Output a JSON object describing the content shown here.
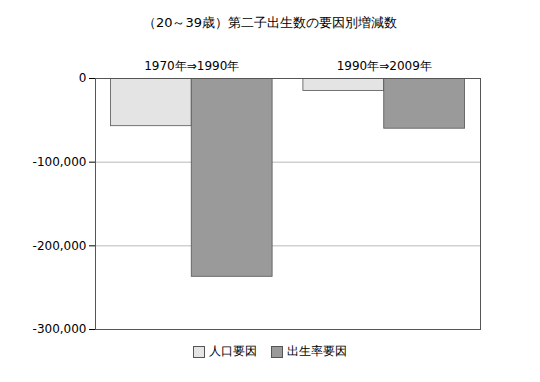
{
  "chart_data": {
    "type": "bar",
    "title": "（20～39歳）第二子出生数の要因別増減数",
    "categories": [
      "1970年⇒1990年",
      "1990年⇒2009年"
    ],
    "series": [
      {
        "name": "人口要因",
        "color": "#e4e4e4",
        "values": [
          -57000,
          -15000
        ]
      },
      {
        "name": "出生率要因",
        "color": "#9a9a9a",
        "values": [
          -237000,
          -60000
        ]
      }
    ],
    "ylim": [
      -300000,
      0
    ],
    "yticks": [
      {
        "value": -300000,
        "label": "-300,000"
      },
      {
        "value": -200000,
        "label": "-200,000"
      },
      {
        "value": -100000,
        "label": "-100,000"
      },
      0
    ],
    "grid": true,
    "legend": "bottom"
  }
}
